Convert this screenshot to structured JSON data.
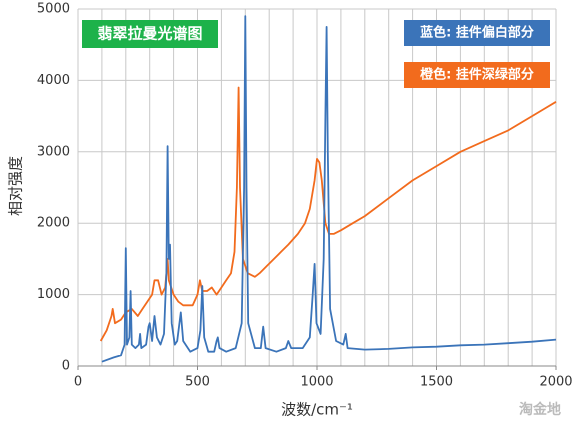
{
  "chart_data": {
    "type": "line",
    "title": "翡翠拉曼光谱图",
    "xlabel": "波数/cm⁻¹",
    "ylabel": "相对强度",
    "watermark": "淘金地",
    "xlim": [
      0,
      2000
    ],
    "xticks": [
      0,
      500,
      1000,
      1500,
      2000
    ],
    "x_gridlines": [
      0,
      100,
      200,
      300,
      400,
      500,
      600,
      700,
      800,
      900,
      1000,
      1100,
      1200,
      1300,
      1400,
      1500,
      1600,
      1700,
      1800,
      1900,
      2000
    ],
    "ylim": [
      0,
      5000
    ],
    "yticks": [
      0,
      1000,
      2000,
      3000,
      4000,
      5000
    ],
    "grid": true,
    "series": [
      {
        "name": "橙色: 挂件深绿部分",
        "color": "#f26b1d",
        "x": [
          95,
          120,
          140,
          145,
          155,
          180,
          200,
          225,
          250,
          270,
          290,
          310,
          320,
          335,
          350,
          365,
          375,
          380,
          400,
          420,
          440,
          460,
          480,
          500,
          510,
          520,
          540,
          560,
          580,
          600,
          620,
          640,
          655,
          665,
          672,
          678,
          690,
          710,
          740,
          760,
          790,
          820,
          850,
          880,
          920,
          950,
          970,
          990,
          1000,
          1010,
          1020,
          1035,
          1050,
          1070,
          1100,
          1150,
          1200,
          1300,
          1400,
          1500,
          1600,
          1700,
          1800,
          1900,
          1950,
          2000
        ],
        "values": [
          350,
          500,
          700,
          800,
          600,
          650,
          750,
          800,
          700,
          800,
          900,
          1000,
          1200,
          1200,
          1000,
          1100,
          1500,
          1200,
          1000,
          900,
          850,
          850,
          850,
          1000,
          1200,
          1050,
          1050,
          1100,
          1000,
          1100,
          1200,
          1300,
          1600,
          2500,
          3900,
          2500,
          1500,
          1300,
          1250,
          1300,
          1400,
          1500,
          1600,
          1700,
          1850,
          2000,
          2200,
          2600,
          2900,
          2850,
          2600,
          2000,
          1850,
          1850,
          1900,
          2000,
          2100,
          2350,
          2600,
          2800,
          3000,
          3150,
          3300,
          3500,
          3600,
          3700
        ]
      },
      {
        "name": "蓝色: 挂件偏白部分",
        "color": "#3b74b9",
        "x": [
          100,
          150,
          180,
          195,
          200,
          205,
          215,
          220,
          225,
          240,
          255,
          260,
          265,
          285,
          295,
          300,
          310,
          320,
          330,
          345,
          360,
          370,
          375,
          380,
          385,
          392,
          405,
          415,
          430,
          440,
          470,
          500,
          512,
          520,
          528,
          545,
          570,
          580,
          585,
          592,
          620,
          660,
          685,
          695,
          700,
          705,
          712,
          740,
          765,
          775,
          785,
          830,
          870,
          880,
          892,
          940,
          970,
          982,
          990,
          998,
          1015,
          1028,
          1035,
          1040,
          1045,
          1055,
          1080,
          1110,
          1120,
          1128,
          1200,
          1300,
          1400,
          1500,
          1600,
          1700,
          1800,
          1900,
          2000
        ],
        "values": [
          60,
          120,
          150,
          300,
          1650,
          300,
          400,
          1050,
          300,
          250,
          300,
          450,
          250,
          300,
          550,
          600,
          350,
          700,
          400,
          300,
          450,
          1300,
          3080,
          1500,
          1700,
          600,
          300,
          350,
          750,
          350,
          200,
          250,
          500,
          1120,
          400,
          200,
          200,
          350,
          400,
          250,
          200,
          250,
          600,
          2500,
          4900,
          2500,
          600,
          250,
          250,
          550,
          250,
          200,
          250,
          350,
          250,
          250,
          400,
          1000,
          1430,
          600,
          450,
          1500,
          3500,
          4750,
          3000,
          800,
          350,
          300,
          450,
          250,
          230,
          240,
          260,
          270,
          290,
          300,
          320,
          340,
          370
        ]
      }
    ]
  }
}
